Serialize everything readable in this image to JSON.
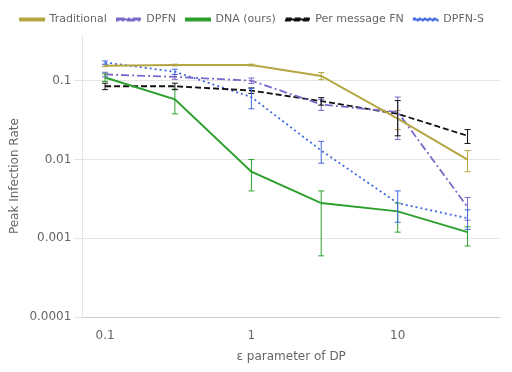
{
  "chart_data": {
    "type": "line",
    "log": true,
    "x": [
      0.1,
      0.3,
      1.0,
      3.0,
      10.0,
      30.0
    ],
    "series": [
      {
        "name": "Traditional",
        "color": "#b5a642",
        "line_style": "solid",
        "values": [
          0.155,
          0.158,
          0.158,
          0.115,
          0.033,
          0.01
        ],
        "error_lo": [
          0.004,
          0.004,
          0.004,
          0.012,
          0.009,
          0.003
        ],
        "error_hi": [
          0.004,
          0.004,
          0.004,
          0.012,
          0.009,
          0.003
        ]
      },
      {
        "name": "DPFN",
        "color": "#7b68c8",
        "line_style": "dashdot",
        "values": [
          0.12,
          0.112,
          0.1,
          0.05,
          0.04,
          0.0025
        ],
        "error_lo": [
          0.008,
          0.008,
          0.008,
          0.008,
          0.022,
          0.0008
        ],
        "error_hi": [
          0.008,
          0.008,
          0.008,
          0.008,
          0.022,
          0.0008
        ]
      },
      {
        "name": "DNA (ours)",
        "color": "#2ca02c",
        "line_style": "solid",
        "values": [
          0.11,
          0.058,
          0.007,
          0.0028,
          0.0022,
          0.0012
        ],
        "error_lo": [
          0.012,
          0.02,
          0.003,
          0.0022,
          0.001,
          0.0004
        ],
        "error_hi": [
          0.012,
          0.02,
          0.003,
          0.0012,
          0.0006,
          0.0002
        ]
      },
      {
        "name": "Per message FN",
        "color": "#111111",
        "line_style": "dashed",
        "values": [
          0.085,
          0.085,
          0.075,
          0.055,
          0.038,
          0.02
        ],
        "error_lo": [
          0.008,
          0.008,
          0.006,
          0.006,
          0.018,
          0.004
        ],
        "error_hi": [
          0.008,
          0.008,
          0.006,
          0.006,
          0.018,
          0.004
        ]
      },
      {
        "name": "DPFN-S",
        "color": "#4169e1",
        "line_style": "dotted",
        "values": [
          0.17,
          0.13,
          0.062,
          0.013,
          0.0028,
          0.0018
        ],
        "error_lo": [
          0.008,
          0.01,
          0.018,
          0.004,
          0.0012,
          0.0005
        ],
        "error_hi": [
          0.008,
          0.01,
          0.018,
          0.004,
          0.0012,
          0.0005
        ]
      }
    ],
    "x_label": "ε parameter of DP",
    "y_label": "Peak Infection Rate",
    "xlim": [
      0.07,
      50.0
    ],
    "ylim": [
      0.0001,
      0.38
    ],
    "xticks": [
      0.1,
      1,
      10
    ],
    "yticks": [
      0.0001,
      0.001,
      0.01,
      0.1
    ],
    "grid": "y",
    "legend": "top"
  }
}
